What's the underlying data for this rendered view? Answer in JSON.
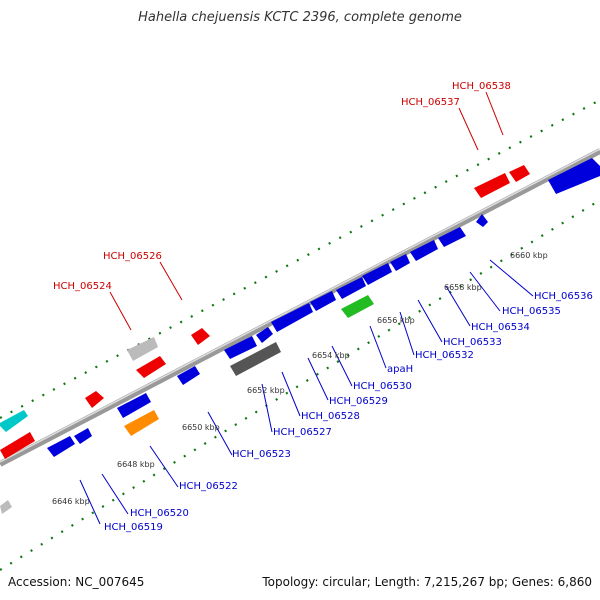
{
  "title": "Hahella chejuensis KCTC 2396, complete genome",
  "footer": {
    "accession": "Accession: NC_007645",
    "summary": "Topology: circular; Length: 7,215,267 bp; Genes: 6,860"
  },
  "colors": {
    "forward_label": "#cc0000",
    "reverse_label": "#0000cc",
    "red_gene": "#ee0000",
    "blue_gene": "#0000dd",
    "backbone": "#888888",
    "tick": "#117711"
  },
  "scale_labels": [
    "6646 kbp",
    "6648 kbp",
    "6650 kbp",
    "6652 kbp",
    "6654 kbp",
    "6656 kbp",
    "6658 kbp",
    "6660 kbp"
  ],
  "forward_gene_labels": [
    "HCH_06524",
    "HCH_06526",
    "HCH_06537",
    "HCH_06538"
  ],
  "reverse_gene_labels": [
    "HCH_06519",
    "HCH_06520",
    "HCH_06522",
    "HCH_06523",
    "HCH_06527",
    "HCH_06528",
    "HCH_06529",
    "HCH_06530",
    "apaH",
    "HCH_06532",
    "HCH_06533",
    "HCH_06534",
    "HCH_06535",
    "HCH_06536"
  ]
}
